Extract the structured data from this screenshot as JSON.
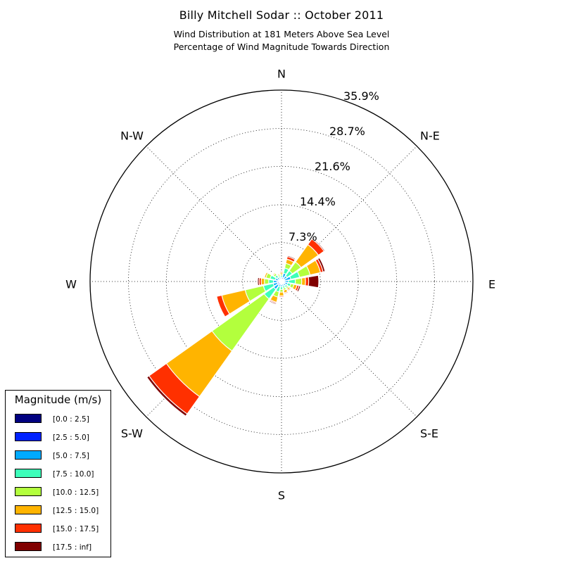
{
  "header": {
    "title": "Billy Mitchell Sodar :: October 2011",
    "subtitle_line1": "Wind Distribution at 181 Meters Above Sea Level",
    "subtitle_line2": "Percentage of Wind Magnitude Towards Direction"
  },
  "chart_data": {
    "type": "windrose",
    "title": "Billy Mitchell Sodar :: October 2011",
    "subtitle": "Wind Distribution at 181 Meters Above Sea Level / Percentage of Wind Magnitude Towards Direction",
    "directions": [
      "N",
      "N-E",
      "E",
      "S-E",
      "S",
      "S-W",
      "W",
      "N-W"
    ],
    "radial_max": 35.9,
    "radial_ticks": [
      "7.3%",
      "14.4%",
      "21.6%",
      "28.7%",
      "35.9%"
    ],
    "radial_tick_values": [
      7.3,
      14.4,
      21.6,
      28.7,
      35.9
    ],
    "grid": true,
    "legend_title": "Magnitude (m/s)",
    "legend_position": "lower-left",
    "bins": [
      {
        "label": "[0.0 : 2.5]",
        "color": "#000080"
      },
      {
        "label": "[2.5 : 5.0]",
        "color": "#0022ff"
      },
      {
        "label": "[5.0 : 7.5]",
        "color": "#00aaff"
      },
      {
        "label": "[7.5 : 10.0]",
        "color": "#3dffba"
      },
      {
        "label": "[10.0 : 12.5]",
        "color": "#b3ff3d"
      },
      {
        "label": "[12.5 : 15.0]",
        "color": "#ffb400"
      },
      {
        "label": "[15.0 : 17.5]",
        "color": "#ff3000"
      },
      {
        "label": "[17.5 : inf]",
        "color": "#800000"
      }
    ],
    "wedges": [
      {
        "direction_deg": 22.5,
        "cumulative": [
          0.3,
          0.8,
          1.6,
          2.6,
          3.5,
          4.3,
          4.8,
          5.0
        ]
      },
      {
        "direction_deg": 45,
        "cumulative": [
          0.2,
          0.6,
          1.3,
          2.5,
          4.5,
          8.5,
          9.8,
          10.0
        ]
      },
      {
        "direction_deg": 67.5,
        "cumulative": [
          0.2,
          0.6,
          1.8,
          3.5,
          5.5,
          7.5,
          8.0,
          8.4
        ]
      },
      {
        "direction_deg": 90,
        "cumulative": [
          0.2,
          0.5,
          1.3,
          2.6,
          3.8,
          4.5,
          5.1,
          7.0
        ]
      },
      {
        "direction_deg": 112.5,
        "cumulative": [
          0.3,
          0.7,
          1.2,
          1.8,
          2.4,
          3.0,
          3.4,
          3.7
        ]
      },
      {
        "direction_deg": 135,
        "cumulative": [
          0.2,
          0.6,
          1.0,
          1.4,
          1.7,
          2.0,
          2.2,
          2.3
        ]
      },
      {
        "direction_deg": 157.5,
        "cumulative": [
          0.2,
          0.5,
          0.9,
          1.3,
          1.7,
          2.2,
          2.4,
          2.5
        ]
      },
      {
        "direction_deg": 180,
        "cumulative": [
          0.2,
          0.6,
          1.0,
          1.5,
          2.0,
          2.7,
          2.9,
          3.0
        ]
      },
      {
        "direction_deg": 202.5,
        "cumulative": [
          0.2,
          0.5,
          1.0,
          2.0,
          3.0,
          4.0,
          4.2,
          4.4
        ]
      },
      {
        "direction_deg": 225,
        "cumulative": [
          0.3,
          0.8,
          1.8,
          4.0,
          16.0,
          26.5,
          30.5,
          31.0
        ]
      },
      {
        "direction_deg": 247.5,
        "cumulative": [
          0.3,
          0.8,
          1.6,
          3.5,
          7.0,
          11.5,
          12.5,
          12.6
        ]
      },
      {
        "direction_deg": 270,
        "cumulative": [
          0.3,
          0.8,
          1.5,
          2.4,
          3.2,
          3.8,
          4.2,
          4.5
        ]
      },
      {
        "direction_deg": 292.5,
        "cumulative": [
          0.2,
          0.6,
          1.2,
          2.2,
          3.0,
          3.3,
          3.4,
          3.5
        ]
      },
      {
        "direction_deg": 315,
        "cumulative": [
          0.2,
          0.5,
          1.0,
          1.5,
          1.9,
          2.1,
          2.2,
          2.3
        ]
      },
      {
        "direction_deg": 337.5,
        "cumulative": [
          0.2,
          0.4,
          0.7,
          1.0,
          1.3,
          1.5,
          1.6,
          1.7
        ]
      },
      {
        "direction_deg": 0,
        "cumulative": [
          0.2,
          0.4,
          0.7,
          1.1,
          1.4,
          1.7,
          1.9,
          2.0
        ]
      }
    ]
  }
}
